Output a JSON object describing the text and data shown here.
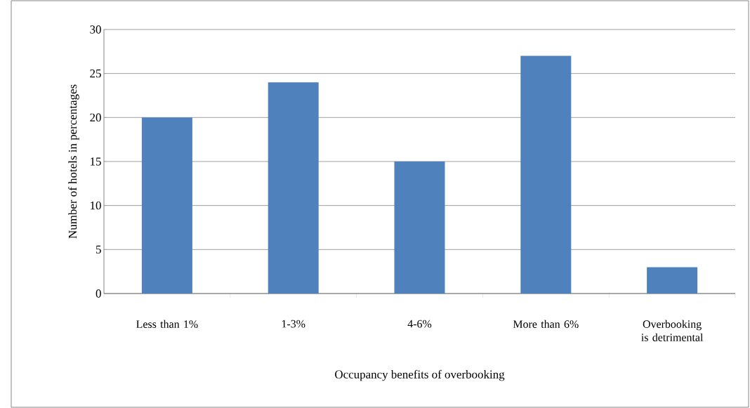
{
  "chart_data": {
    "type": "bar",
    "xlabel": "Occupancy benefits of overbooking",
    "ylabel": "Number of hotels in percentages",
    "categories": [
      "Less than 1%",
      "1-3%",
      "4-6%",
      "More than 6%",
      "Overbooking is detrimental"
    ],
    "values": [
      20,
      24,
      15,
      27,
      3
    ],
    "color": "#4f81bd",
    "ylim": [
      0,
      30
    ],
    "yticks": [
      0,
      5,
      10,
      15,
      20,
      25,
      30
    ],
    "grid": "y"
  }
}
